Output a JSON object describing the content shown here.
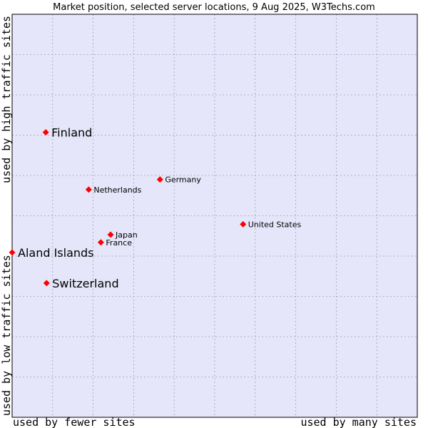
{
  "chart_data": {
    "type": "scatter",
    "title": "Market position, selected server locations, 9 Aug 2025, W3Techs.com",
    "xlabel_left": "used by fewer sites",
    "xlabel_right": "used by many sites",
    "ylabel_bottom": "used by low traffic sites",
    "ylabel_top": "used by high traffic sites",
    "xlim": [
      0,
      100
    ],
    "ylim": [
      0,
      100
    ],
    "grid": true,
    "colors": {
      "plot_bg": "#e6e6fa",
      "grid": "#a0a0b8",
      "marker": "#ff0000",
      "border": "#000000"
    },
    "points": [
      {
        "label": "Finland",
        "x": 8.3,
        "y": 70.7,
        "highlight": true
      },
      {
        "label": "Aland Islands",
        "x": 0,
        "y": 40.9,
        "highlight": true
      },
      {
        "label": "Switzerland",
        "x": 8.5,
        "y": 33.3,
        "highlight": true
      },
      {
        "label": "Germany",
        "x": 36.5,
        "y": 59.0,
        "highlight": false
      },
      {
        "label": "Netherlands",
        "x": 18.9,
        "y": 56.5,
        "highlight": false
      },
      {
        "label": "United States",
        "x": 57.0,
        "y": 47.9,
        "highlight": false
      },
      {
        "label": "Japan",
        "x": 24.3,
        "y": 45.3,
        "highlight": false
      },
      {
        "label": "France",
        "x": 21.9,
        "y": 43.4,
        "highlight": false
      }
    ]
  }
}
